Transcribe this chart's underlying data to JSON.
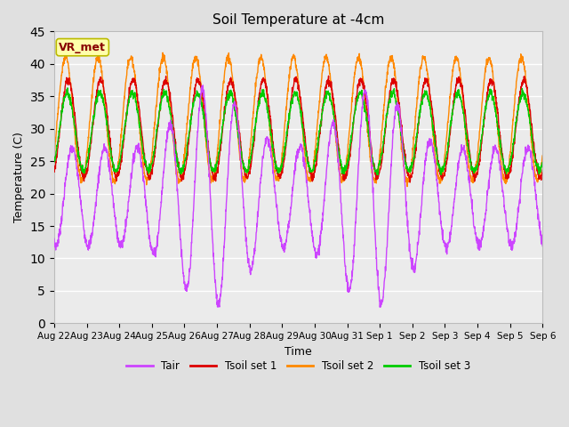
{
  "title": "Soil Temperature at -4cm",
  "xlabel": "Time",
  "ylabel": "Temperature (C)",
  "ylim": [
    0,
    45
  ],
  "yticks": [
    0,
    5,
    10,
    15,
    20,
    25,
    30,
    35,
    40,
    45
  ],
  "colors": {
    "Tair": "#CC44FF",
    "Tsoil_set1": "#DD0000",
    "Tsoil_set2": "#FF8800",
    "Tsoil_set3": "#00CC00"
  },
  "legend_labels": [
    "Tair",
    "Tsoil set 1",
    "Tsoil set 2",
    "Tsoil set 3"
  ],
  "annotation_text": "VR_met",
  "annotation_box_facecolor": "#FFFFAA",
  "annotation_box_edgecolor": "#BBBB00",
  "annotation_text_color": "#880000",
  "fig_facecolor": "#E0E0E0",
  "axes_facecolor": "#EBEBEB",
  "grid_color": "#FFFFFF",
  "grid_linewidth": 1.0,
  "n_days": 15,
  "pts_per_day": 144,
  "tick_labels": [
    "Aug 22",
    "Aug 23",
    "Aug 24",
    "Aug 25",
    "Aug 26",
    "Aug 27",
    "Aug 28",
    "Aug 29",
    "Aug 30",
    "Aug 31",
    "Sep 1",
    "Sep 2",
    "Sep 3",
    "Sep 4",
    "Sep 5",
    "Sep 6"
  ]
}
